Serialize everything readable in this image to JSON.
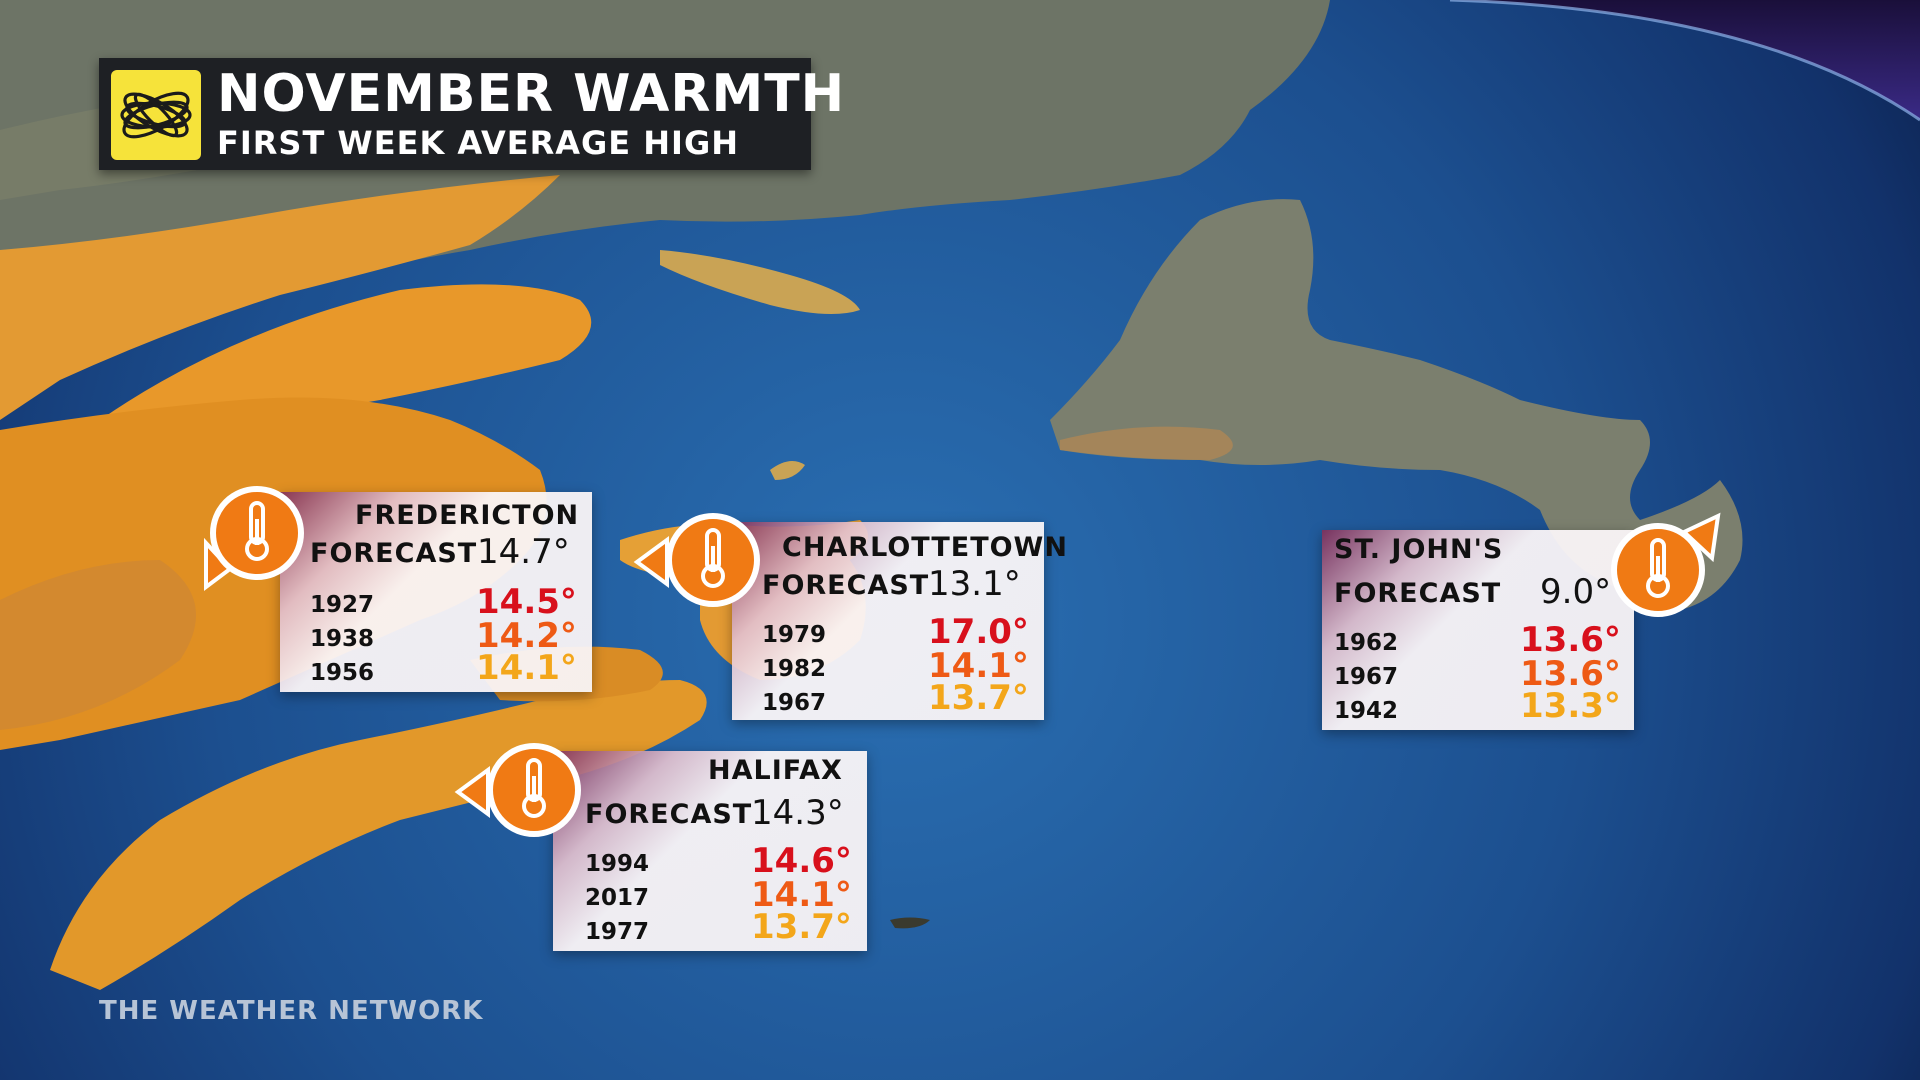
{
  "title": {
    "main": "NOVEMBER WARMTH",
    "sub": "FIRST WEEK AVERAGE HIGH"
  },
  "logo_icon": "weather-network-swirl-logo",
  "footer": "THE WEATHER NETWORK",
  "colors": {
    "rank1": "#d8101c",
    "rank2": "#ee5a15",
    "rank3": "#f3a61a",
    "marker": "#f07a14",
    "land": "#e59a2a",
    "ocean": "#1f5fa0"
  },
  "cities": {
    "fredericton": {
      "name": "FREDERICTON",
      "forecast_label": "FORECAST",
      "forecast_value": "14.7°",
      "records": [
        {
          "year": "1927",
          "temp": "14.5°"
        },
        {
          "year": "1938",
          "temp": "14.2°"
        },
        {
          "year": "1956",
          "temp": "14.1°"
        }
      ]
    },
    "charlottetown": {
      "name": "CHARLOTTETOWN",
      "forecast_label": "FORECAST",
      "forecast_value": "13.1°",
      "records": [
        {
          "year": "1979",
          "temp": "17.0°"
        },
        {
          "year": "1982",
          "temp": "14.1°"
        },
        {
          "year": "1967",
          "temp": "13.7°"
        }
      ]
    },
    "halifax": {
      "name": "HALIFAX",
      "forecast_label": "FORECAST",
      "forecast_value": "14.3°",
      "records": [
        {
          "year": "1994",
          "temp": "14.6°"
        },
        {
          "year": "2017",
          "temp": "14.1°"
        },
        {
          "year": "1977",
          "temp": "13.7°"
        }
      ]
    },
    "stjohns": {
      "name": "ST. JOHN'S",
      "forecast_label": "FORECAST",
      "forecast_value": "9.0°",
      "records": [
        {
          "year": "1962",
          "temp": "13.6°"
        },
        {
          "year": "1967",
          "temp": "13.6°"
        },
        {
          "year": "1942",
          "temp": "13.3°"
        }
      ]
    }
  },
  "marker_icon": "thermometer-icon"
}
